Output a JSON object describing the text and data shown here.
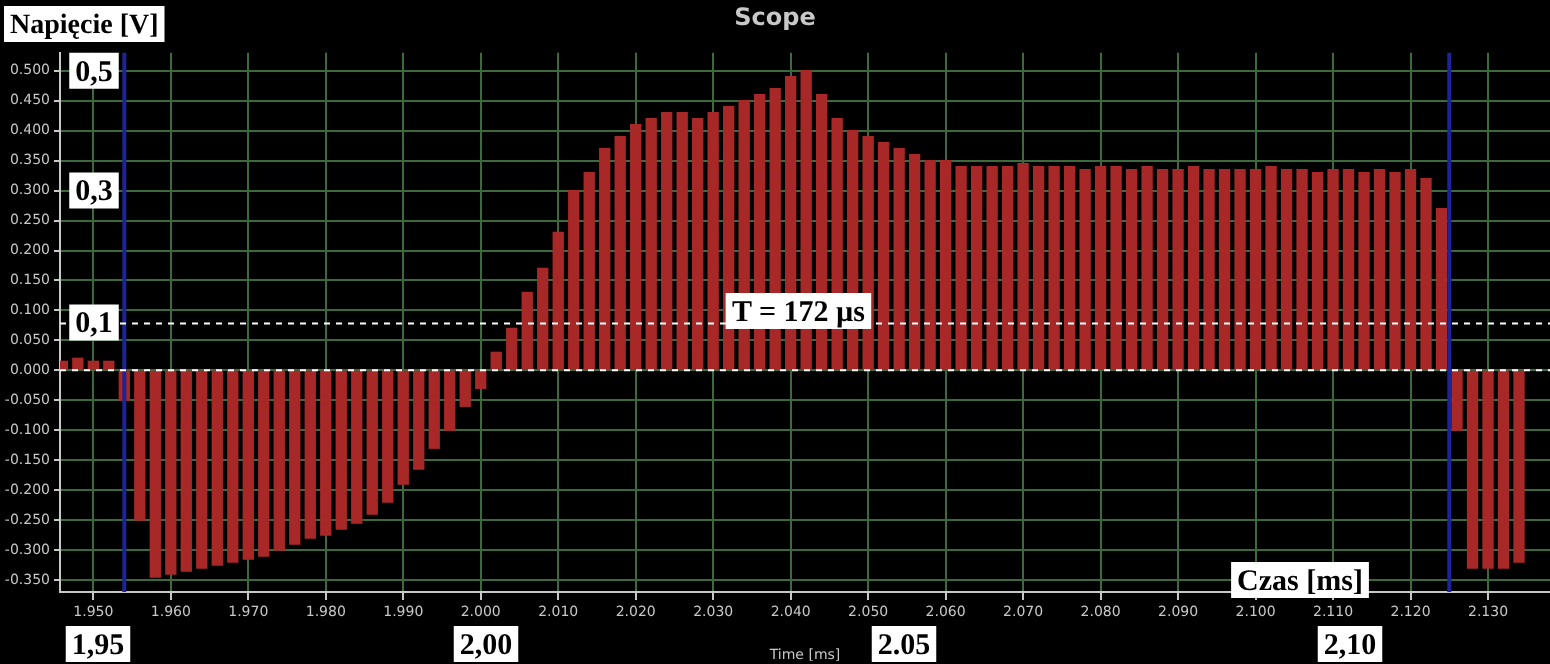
{
  "chart_data": {
    "type": "bar",
    "title": "Scope",
    "xlabel": "Time [ms]",
    "ylabel": "Napięcie [V]",
    "x": [
      1.946,
      1.948,
      1.95,
      1.952,
      1.954,
      1.956,
      1.958,
      1.96,
      1.962,
      1.964,
      1.966,
      1.968,
      1.97,
      1.972,
      1.974,
      1.976,
      1.978,
      1.98,
      1.982,
      1.984,
      1.986,
      1.988,
      1.99,
      1.992,
      1.994,
      1.996,
      1.998,
      2.0,
      2.002,
      2.004,
      2.006,
      2.008,
      2.01,
      2.012,
      2.014,
      2.016,
      2.018,
      2.02,
      2.022,
      2.024,
      2.026,
      2.028,
      2.03,
      2.032,
      2.034,
      2.036,
      2.038,
      2.04,
      2.042,
      2.044,
      2.046,
      2.048,
      2.05,
      2.052,
      2.054,
      2.056,
      2.058,
      2.06,
      2.062,
      2.064,
      2.066,
      2.068,
      2.07,
      2.072,
      2.074,
      2.076,
      2.078,
      2.08,
      2.082,
      2.084,
      2.086,
      2.088,
      2.09,
      2.092,
      2.094,
      2.096,
      2.098,
      2.1,
      2.102,
      2.104,
      2.106,
      2.108,
      2.11,
      2.112,
      2.114,
      2.116,
      2.118,
      2.12,
      2.122,
      2.124,
      2.126,
      2.128,
      2.13,
      2.132,
      2.134
    ],
    "series": [
      {
        "color": "#a82828",
        "values": [
          0.015,
          0.02,
          0.015,
          0.015,
          -0.05,
          -0.25,
          -0.345,
          -0.34,
          -0.335,
          -0.33,
          -0.325,
          -0.32,
          -0.315,
          -0.31,
          -0.3,
          -0.29,
          -0.28,
          -0.275,
          -0.265,
          -0.255,
          -0.24,
          -0.22,
          -0.19,
          -0.165,
          -0.13,
          -0.1,
          -0.06,
          -0.03,
          0.03,
          0.07,
          0.13,
          0.17,
          0.23,
          0.3,
          0.33,
          0.37,
          0.39,
          0.41,
          0.42,
          0.43,
          0.43,
          0.42,
          0.43,
          0.44,
          0.45,
          0.46,
          0.47,
          0.49,
          0.5,
          0.46,
          0.42,
          0.4,
          0.39,
          0.38,
          0.37,
          0.36,
          0.35,
          0.35,
          0.34,
          0.34,
          0.34,
          0.34,
          0.345,
          0.34,
          0.34,
          0.34,
          0.335,
          0.34,
          0.34,
          0.335,
          0.34,
          0.335,
          0.335,
          0.34,
          0.335,
          0.335,
          0.335,
          0.335,
          0.34,
          0.335,
          0.335,
          0.33,
          0.335,
          0.335,
          0.33,
          0.335,
          0.33,
          0.335,
          0.32,
          0.27,
          -0.1,
          -0.33,
          -0.33,
          -0.33,
          -0.32
        ]
      }
    ],
    "xlim": [
      1.9457,
      2.138
    ],
    "xticks": [
      {
        "value": 1.95,
        "label": "1.950"
      },
      {
        "value": 1.96,
        "label": "1.960"
      },
      {
        "value": 1.97,
        "label": "1.970"
      },
      {
        "value": 1.98,
        "label": "1.980"
      },
      {
        "value": 1.99,
        "label": "1.990"
      },
      {
        "value": 2.0,
        "label": "2.000"
      },
      {
        "value": 2.01,
        "label": "2.010"
      },
      {
        "value": 2.02,
        "label": "2.020"
      },
      {
        "value": 2.03,
        "label": "2.030"
      },
      {
        "value": 2.04,
        "label": "2.040"
      },
      {
        "value": 2.05,
        "label": "2.050"
      },
      {
        "value": 2.06,
        "label": "2.060"
      },
      {
        "value": 2.07,
        "label": "2.070"
      },
      {
        "value": 2.08,
        "label": "2.080"
      },
      {
        "value": 2.09,
        "label": "2.090"
      },
      {
        "value": 2.1,
        "label": "2.100"
      },
      {
        "value": 2.11,
        "label": "2.110"
      },
      {
        "value": 2.12,
        "label": "2.120"
      },
      {
        "value": 2.13,
        "label": "2.130"
      }
    ],
    "ylim": [
      -0.37,
      0.53
    ],
    "yticks": [
      {
        "value": -0.35,
        "label": "-0.350"
      },
      {
        "value": -0.3,
        "label": "-0.300"
      },
      {
        "value": -0.25,
        "label": "-0.250"
      },
      {
        "value": -0.2,
        "label": "-0.200"
      },
      {
        "value": -0.15,
        "label": "-0.150"
      },
      {
        "value": -0.1,
        "label": "-0.100"
      },
      {
        "value": -0.05,
        "label": "-0.050"
      },
      {
        "value": 0,
        "label": "0.000"
      },
      {
        "value": 0.05,
        "label": "0.050"
      },
      {
        "value": 0.1,
        "label": "0.100"
      },
      {
        "value": 0.15,
        "label": "0.150"
      },
      {
        "value": 0.2,
        "label": "0.200"
      },
      {
        "value": 0.25,
        "label": "0.250"
      },
      {
        "value": 0.3,
        "label": "0.300"
      },
      {
        "value": 0.35,
        "label": "0.350"
      },
      {
        "value": 0.4,
        "label": "0.400"
      },
      {
        "value": 0.45,
        "label": "0.450"
      },
      {
        "value": 0.5,
        "label": "0.500"
      }
    ],
    "grid": true,
    "ref_lines": [
      {
        "axis": "x",
        "value": 1.954,
        "color": "#1c2496"
      },
      {
        "axis": "x",
        "value": 2.125,
        "color": "#1c2496"
      },
      {
        "axis": "y",
        "value": 0.078,
        "color": "#ffffff",
        "line_style": "dashed"
      },
      {
        "axis": "y",
        "value": 0,
        "color": "#ffffff",
        "line_style": "dashed"
      }
    ],
    "annotations": [
      {
        "text": "0,5",
        "y": 0.5
      },
      {
        "text": "0,3",
        "y": 0.3
      },
      {
        "text": "0,1",
        "y": 0.08
      },
      {
        "text": "T = 172 µs",
        "x": 2.041,
        "y": 0.099
      },
      "Czas [ms]",
      "1,95",
      "2,00",
      "2.05",
      "2,10"
    ]
  }
}
